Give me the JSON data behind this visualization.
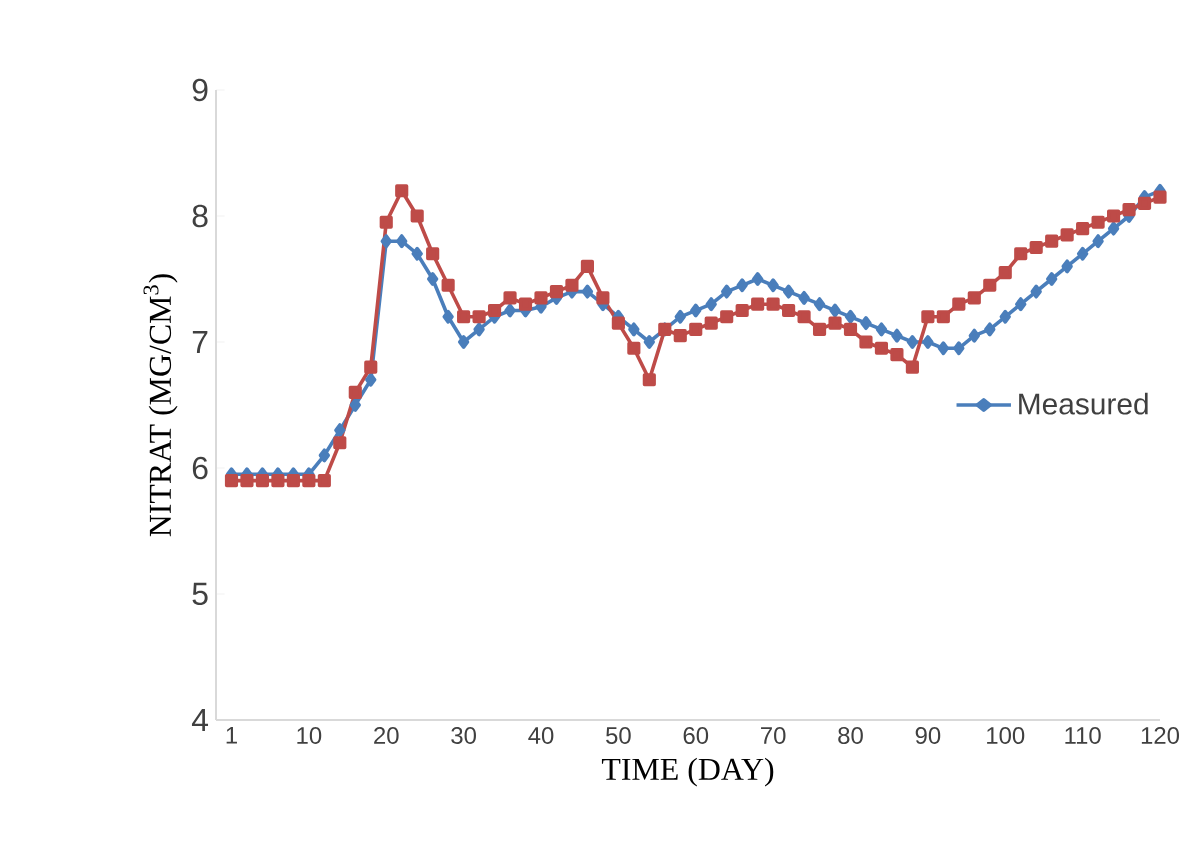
{
  "chart_data": {
    "type": "line",
    "xlabel": "TIME (DAY)",
    "ylabel": "NITRAT (MG/CM$^{3}$)",
    "categories": [
      "1",
      null,
      null,
      null,
      null,
      "10",
      null,
      null,
      null,
      null,
      "20",
      null,
      null,
      null,
      null,
      "30",
      null,
      null,
      null,
      null,
      "40",
      null,
      null,
      null,
      null,
      "50",
      null,
      null,
      null,
      null,
      "60",
      null,
      null,
      null,
      null,
      "70",
      null,
      null,
      null,
      null,
      "80",
      null,
      null,
      null,
      null,
      "90",
      null,
      null,
      null,
      null,
      "100",
      null,
      null,
      null,
      null,
      "110",
      null,
      null,
      null,
      null,
      "120"
    ],
    "ylim": [
      4,
      9
    ],
    "yticks": [
      4,
      5,
      6,
      7,
      8,
      9
    ],
    "grid": false,
    "legend": "right",
    "series": [
      {
        "name": "Measured",
        "color": "#4a7ebb",
        "marker": "diamond",
        "values": [
          5.95,
          5.95,
          5.95,
          5.95,
          5.95,
          5.95,
          6.1,
          6.3,
          6.5,
          6.7,
          7.8,
          7.8,
          7.7,
          7.5,
          7.2,
          7.0,
          7.1,
          7.2,
          7.25,
          7.25,
          7.28,
          7.35,
          7.4,
          7.4,
          7.3,
          7.2,
          7.1,
          7.0,
          7.1,
          7.2,
          7.25,
          7.3,
          7.4,
          7.45,
          7.5,
          7.45,
          7.4,
          7.35,
          7.3,
          7.25,
          7.2,
          7.15,
          7.1,
          7.05,
          7.0,
          7.0,
          6.95,
          6.95,
          7.05,
          7.1,
          7.2,
          7.3,
          7.4,
          7.5,
          7.6,
          7.7,
          7.8,
          7.9,
          8.0,
          8.15,
          8.2
        ]
      },
      {
        "color": "#be4b48",
        "marker": "square",
        "values": [
          5.9,
          5.9,
          5.9,
          5.9,
          5.9,
          5.9,
          5.9,
          6.2,
          6.6,
          6.8,
          7.95,
          8.2,
          8.0,
          7.7,
          7.45,
          7.2,
          7.2,
          7.25,
          7.35,
          7.3,
          7.35,
          7.4,
          7.45,
          7.6,
          7.35,
          7.15,
          6.95,
          6.7,
          7.1,
          7.05,
          7.1,
          7.15,
          7.2,
          7.25,
          7.3,
          7.3,
          7.25,
          7.2,
          7.1,
          7.15,
          7.1,
          7.0,
          6.95,
          6.9,
          6.8,
          7.2,
          7.2,
          7.3,
          7.35,
          7.45,
          7.55,
          7.7,
          7.75,
          7.8,
          7.85,
          7.9,
          7.95,
          8.0,
          8.05,
          8.1,
          8.15
        ]
      }
    ]
  }
}
